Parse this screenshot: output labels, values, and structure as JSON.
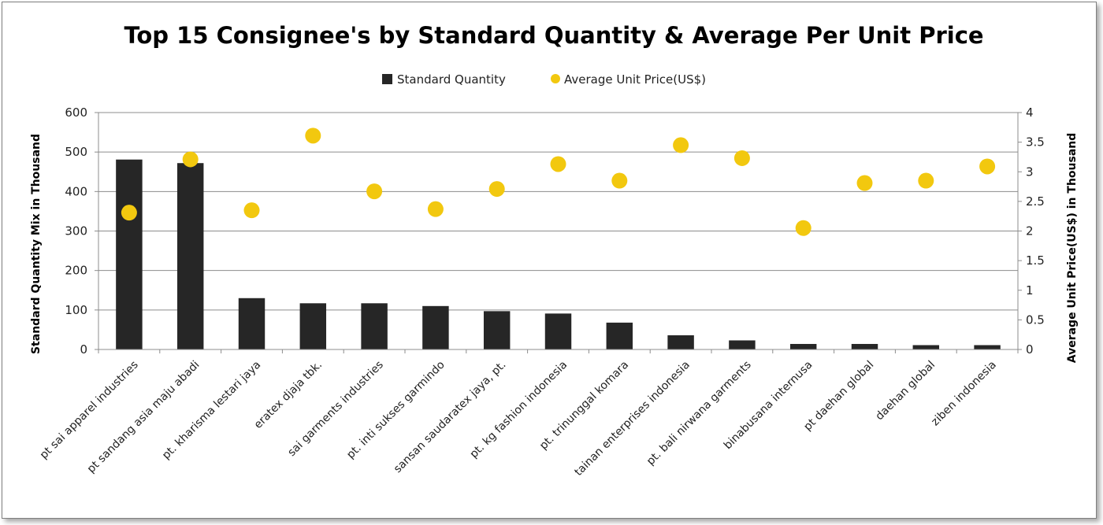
{
  "colors": {
    "bar": "#262626",
    "dot": "#f2c80f",
    "grid": "#8c8c8c",
    "axis": "#8c8c8c"
  },
  "chart_data": {
    "type": "bar",
    "title": "Top 15 Consignee's by Standard Quantity & Average Per Unit Price",
    "categories": [
      "pt sai apparel industries",
      "pt sandang asia maju abadi",
      "pt. kharisma lestari jaya",
      "eratex djaja tbk.",
      "sai garments industries",
      "pt. inti sukses garmindo",
      "sansan saudaratex jaya, pt.",
      "pt. kg fashion indonesia",
      "pt. trinunggal komara",
      "tainan enterprises indonesia",
      "pt. bali nirwana garments",
      "binabusana internusa",
      "pt daehan global",
      "daehan global",
      "ziben indonesia"
    ],
    "series": [
      {
        "name": "Standard Quantity",
        "type": "bar",
        "axis": "left",
        "values": [
          481,
          472,
          130,
          117,
          117,
          110,
          97,
          91,
          68,
          36,
          23,
          14,
          14,
          11,
          11
        ]
      },
      {
        "name": "Average Unit Price(US$)",
        "type": "scatter",
        "axis": "right",
        "values": [
          2.31,
          3.21,
          2.35,
          3.61,
          2.67,
          2.37,
          2.71,
          3.13,
          2.85,
          3.45,
          3.23,
          2.05,
          2.81,
          2.85,
          3.09
        ]
      }
    ],
    "ylabel": "Standard Quantity Mix in Thousand",
    "ylabel_right": "Average Unit Price(US$) in Thousand",
    "ylim": [
      0,
      600
    ],
    "yticks": [
      "0",
      "100",
      "200",
      "300",
      "400",
      "500",
      "600"
    ],
    "ylim_right": [
      0,
      4
    ],
    "yticks_right": [
      "0",
      "0.5",
      "1",
      "1.5",
      "2",
      "2.5",
      "3",
      "3.5",
      "4"
    ],
    "grid": true,
    "legend_position": "top-center"
  }
}
